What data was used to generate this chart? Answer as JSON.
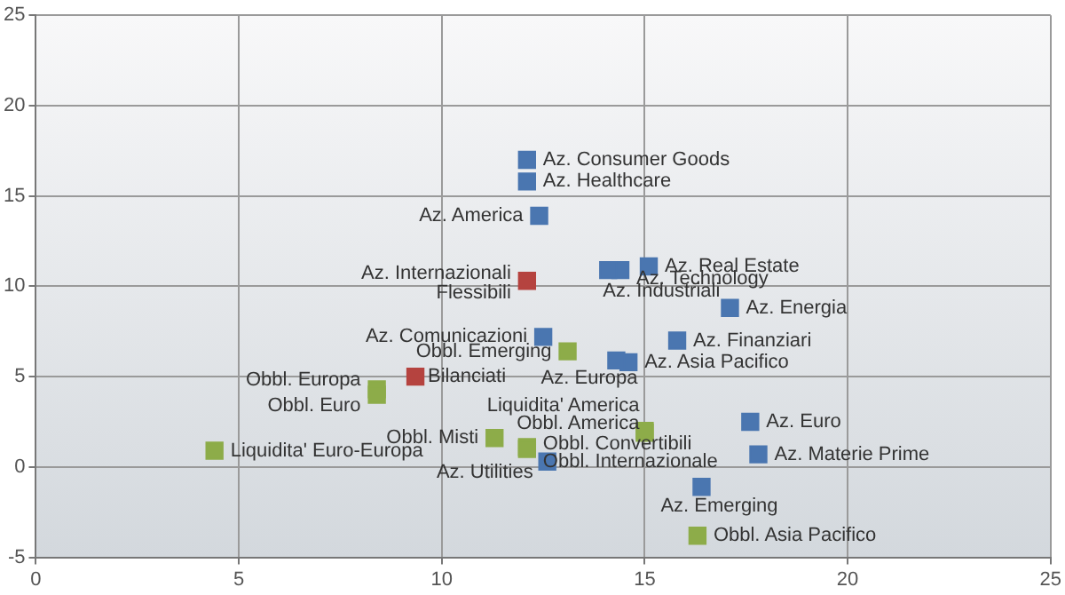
{
  "chart_data": {
    "type": "scatter",
    "marker": "square",
    "grid": true,
    "legend": false,
    "xlim": [
      0,
      25
    ],
    "xticks": [
      0,
      5,
      10,
      15,
      20,
      25
    ],
    "ylim": [
      -5,
      25
    ],
    "yticks": [
      -5,
      0,
      5,
      10,
      15,
      20,
      25
    ],
    "series": [
      {
        "color": "#4a76b0",
        "x": [
          12.1,
          12.1,
          12.4,
          15.1,
          14.4,
          14.1,
          17.1,
          12.5,
          15.8,
          14.6,
          14.3,
          12.6,
          17.6,
          17.8,
          16.4
        ],
        "values": [
          17.0,
          15.8,
          13.9,
          11.1,
          10.9,
          10.9,
          8.8,
          7.2,
          7.0,
          5.8,
          5.9,
          0.3,
          2.5,
          0.7,
          -1.1
        ],
        "value_labels": [
          "Az. Consumer Goods",
          "Az. Healthcare",
          "Az. America",
          "Az. Real Estate",
          "Az. Technology",
          "Az. Industriali",
          "Az. Energia",
          "Az. Comunicazioni",
          "Az. Finanziari",
          "Az. Asia Pacifico",
          "Az. Europa",
          "Az. Utilities",
          "Az. Euro",
          "Az. Materie Prime",
          "Az. Emerging"
        ]
      },
      {
        "color": "#b5433f",
        "x": [
          12.1,
          9.35
        ],
        "values": [
          10.3,
          5.0
        ],
        "value_labels": [
          "Az. Internazionali Flessibili",
          "Bilanciati"
        ]
      },
      {
        "color": "#8dac49",
        "x": [
          13.1,
          8.4,
          8.4,
          4.4,
          11.3,
          12.1,
          12.1,
          15.0,
          15.0,
          16.3
        ],
        "values": [
          6.4,
          4.3,
          4.0,
          0.9,
          1.6,
          1.1,
          1.0,
          2.0,
          1.9,
          -3.8
        ],
        "value_labels": [
          "Obbl. Emerging",
          "Obbl. Europa",
          "Obbl. Euro",
          "Liquidita' Euro-Europa",
          "Obbl. Misti",
          "Obbl. Convertibili",
          "Obbl. Internazionale",
          "Liquidita' America",
          "Obbl. America",
          "Obbl. Asia Pacifico"
        ]
      }
    ]
  }
}
